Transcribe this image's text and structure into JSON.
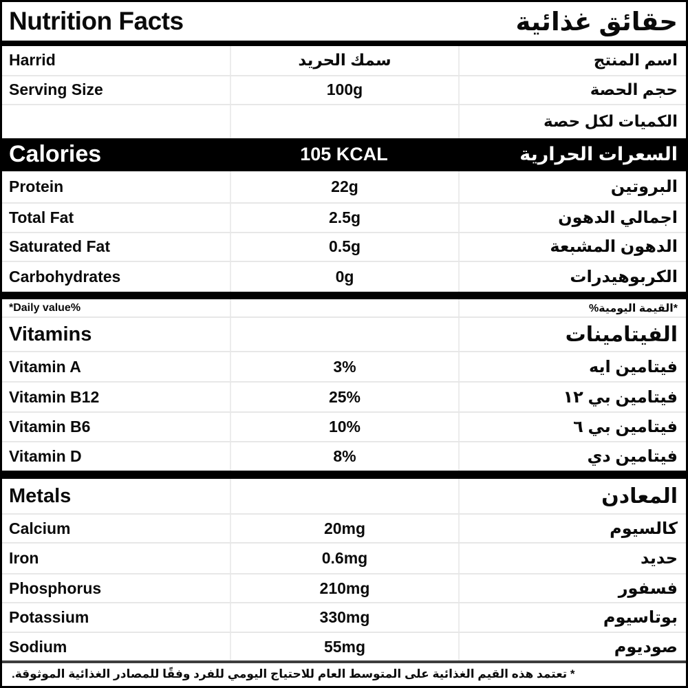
{
  "header": {
    "title_en": "Nutrition Facts",
    "title_ar": "حقائق غذائية"
  },
  "info_rows": [
    {
      "en": "Harrid",
      "value": "سمك الحريد",
      "ar": "اسم المنتج"
    },
    {
      "en": "Serving Size",
      "value": "100g",
      "ar": "حجم الحصة"
    },
    {
      "en": "",
      "value": "",
      "ar": "الكميات لكل حصة"
    }
  ],
  "calories": {
    "en": "Calories",
    "value": "105 KCAL",
    "ar": "السعرات الحرارية"
  },
  "macros": [
    {
      "en": "Protein",
      "value": "22g",
      "ar": "البروتين"
    },
    {
      "en": "Total Fat",
      "value": "2.5g",
      "ar": "اجمالي الدهون"
    },
    {
      "en": "Saturated Fat",
      "value": "0.5g",
      "ar": "الدهون المشبعة"
    },
    {
      "en": "Carbohydrates",
      "value": "0g",
      "ar": "الكربوهيدرات"
    }
  ],
  "daily_value": {
    "en": "*Daily value%",
    "ar": "*القيمة اليومية%"
  },
  "vitamins": {
    "header_en": "Vitamins",
    "header_ar": "الفيتامينات",
    "rows": [
      {
        "en": "Vitamin A",
        "value": "3%",
        "ar": "فيتامين ايه"
      },
      {
        "en": "Vitamin B12",
        "value": "25%",
        "ar": "فيتامين بي ١٢"
      },
      {
        "en": "Vitamin B6",
        "value": "10%",
        "ar": "فيتامين بي ٦"
      },
      {
        "en": "Vitamin D",
        "value": "8%",
        "ar": "فيتامين دي"
      }
    ]
  },
  "metals": {
    "header_en": "Metals",
    "header_ar": "المعادن",
    "rows": [
      {
        "en": "Calcium",
        "value": "20mg",
        "ar": "كالسيوم"
      },
      {
        "en": "Iron",
        "value": "0.6mg",
        "ar": "حديد"
      },
      {
        "en": "Phosphorus",
        "value": "210mg",
        "ar": "فسفور"
      },
      {
        "en": "Potassium",
        "value": "330mg",
        "ar": "بوتاسيوم"
      },
      {
        "en": "Sodium",
        "value": "55mg",
        "ar": "صوديوم"
      }
    ]
  },
  "footnote": "* تعتمد هذه القيم الغذائية على المتوسط العام للاحتياج اليومي للفرد وفقًا للمصادر الغذائية الموثوقة.",
  "colors": {
    "section_bar": "#000000",
    "text": "#0a0a0a",
    "divider": "#ececec",
    "background": "#ffffff"
  }
}
